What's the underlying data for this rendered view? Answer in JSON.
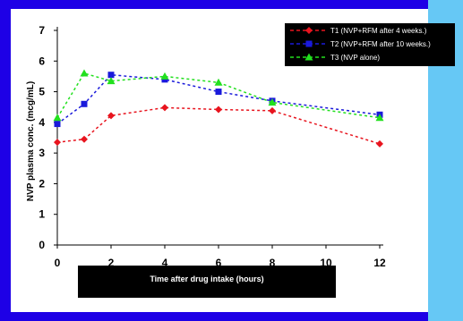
{
  "chart_data": {
    "type": "line",
    "xlabel": "Time after drug intake (hours)",
    "ylabel": "NVP plasma conc. (mcg/mL)",
    "xlim": [
      0,
      12
    ],
    "ylim": [
      0,
      7
    ],
    "x_ticks": [
      "0",
      "2",
      "4",
      "6",
      "8",
      "10",
      "12"
    ],
    "y_ticks": [
      "0",
      "1",
      "2",
      "3",
      "4",
      "5",
      "6",
      "7"
    ],
    "legend_position": "top-right",
    "series": [
      {
        "name": "T1 (NVP+RFM after  4 weeks.)",
        "color": "#e8141e",
        "marker": "diamond",
        "x": [
          0,
          1,
          2,
          4,
          6,
          8,
          12
        ],
        "values": [
          3.35,
          3.45,
          4.22,
          4.48,
          4.42,
          4.38,
          3.3
        ]
      },
      {
        "name": "T2 (NVP+RFM after  10 weeks.)",
        "color": "#1a1adb",
        "marker": "square",
        "x": [
          0,
          1,
          2,
          4,
          6,
          8,
          12
        ],
        "values": [
          3.95,
          4.6,
          5.55,
          5.4,
          5.0,
          4.7,
          4.25
        ]
      },
      {
        "name": "T3 (NVP alone)",
        "color": "#22e01e",
        "marker": "triangle",
        "x": [
          0,
          1,
          2,
          4,
          6,
          8,
          12
        ],
        "values": [
          4.15,
          5.6,
          5.35,
          5.5,
          5.3,
          4.65,
          4.15
        ]
      }
    ]
  }
}
